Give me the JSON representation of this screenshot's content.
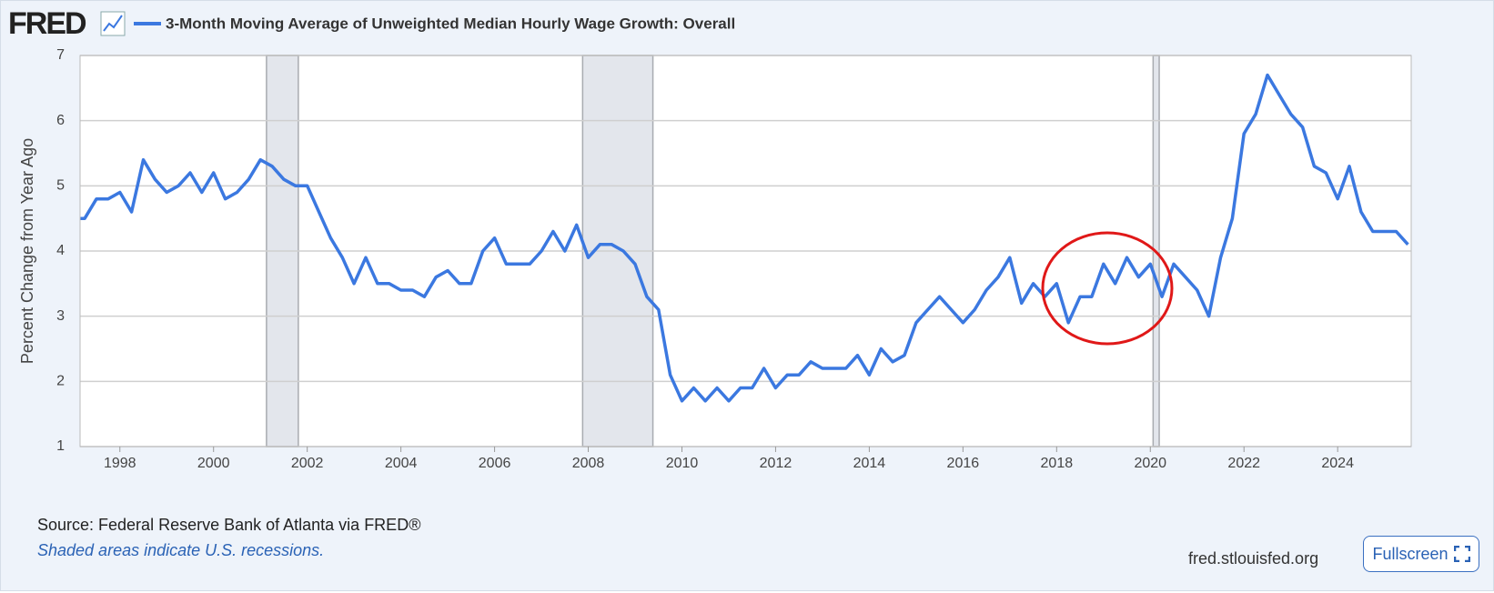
{
  "header": {
    "logo": "FRED"
  },
  "chart_data": {
    "type": "line",
    "y_label": "Percent Change from Year Ago",
    "series": [
      {
        "name": "3-Month Moving Average of Unweighted Median Hourly Wage Growth: Overall",
        "color": "#3b78e0",
        "values": [
          4.5,
          4.5,
          4.8,
          4.8,
          4.9,
          4.6,
          5.4,
          5.1,
          4.9,
          5.0,
          5.2,
          4.9,
          5.2,
          4.8,
          4.9,
          5.1,
          5.4,
          5.3,
          5.1,
          5.0,
          5.0,
          4.6,
          4.2,
          3.9,
          3.5,
          3.9,
          3.5,
          3.5,
          3.4,
          3.4,
          3.3,
          3.6,
          3.7,
          3.5,
          3.5,
          4.0,
          4.2,
          3.8,
          3.8,
          3.8,
          4.0,
          4.3,
          4.0,
          4.4,
          3.9,
          4.1,
          4.1,
          4.0,
          3.8,
          3.3,
          3.1,
          2.1,
          1.7,
          1.9,
          1.7,
          1.9,
          1.7,
          1.9,
          1.9,
          2.2,
          1.9,
          2.1,
          2.1,
          2.3,
          2.2,
          2.2,
          2.2,
          2.4,
          2.1,
          2.5,
          2.3,
          2.4,
          2.9,
          3.1,
          3.3,
          3.1,
          2.9,
          3.1,
          3.4,
          3.6,
          3.9,
          3.2,
          3.5,
          3.3,
          3.5,
          2.9,
          3.3,
          3.3,
          3.8,
          3.5,
          3.9,
          3.6,
          3.8,
          3.3,
          3.8,
          3.6,
          3.4,
          3.0,
          3.9,
          4.5,
          5.8,
          6.1,
          6.7,
          6.4,
          6.1,
          5.9,
          5.3,
          5.2,
          4.8,
          5.3,
          4.6,
          4.3,
          4.3,
          4.3,
          4.1
        ]
      }
    ],
    "x": [
      1997.15,
      1997.25,
      1997.5,
      1997.75,
      1998.0,
      1998.25,
      1998.5,
      1998.75,
      1999.0,
      1999.25,
      1999.5,
      1999.75,
      2000.0,
      2000.25,
      2000.5,
      2000.75,
      2001.0,
      2001.25,
      2001.5,
      2001.75,
      2002.0,
      2002.25,
      2002.5,
      2002.75,
      2003.0,
      2003.25,
      2003.5,
      2003.75,
      2004.0,
      2004.25,
      2004.5,
      2004.75,
      2005.0,
      2005.25,
      2005.5,
      2005.75,
      2006.0,
      2006.25,
      2006.5,
      2006.75,
      2007.0,
      2007.25,
      2007.5,
      2007.75,
      2008.0,
      2008.25,
      2008.5,
      2008.75,
      2009.0,
      2009.25,
      2009.5,
      2009.75,
      2010.0,
      2010.25,
      2010.5,
      2010.75,
      2011.0,
      2011.25,
      2011.5,
      2011.75,
      2012.0,
      2012.25,
      2012.5,
      2012.75,
      2013.0,
      2013.25,
      2013.5,
      2013.75,
      2014.0,
      2014.25,
      2014.5,
      2014.75,
      2015.0,
      2015.25,
      2015.5,
      2015.75,
      2016.0,
      2016.25,
      2016.5,
      2016.75,
      2017.0,
      2017.25,
      2017.5,
      2017.75,
      2018.0,
      2018.25,
      2018.5,
      2018.75,
      2019.0,
      2019.25,
      2019.5,
      2019.75,
      2020.0,
      2020.25,
      2020.5,
      2020.75,
      2021.0,
      2021.25,
      2021.5,
      2021.75,
      2022.0,
      2022.25,
      2022.5,
      2022.75,
      2023.0,
      2023.25,
      2023.5,
      2023.75,
      2024.0,
      2024.25,
      2024.5,
      2024.75,
      2025.0,
      2025.25,
      2025.5
    ],
    "recessions": [
      [
        2001.13,
        2001.81
      ],
      [
        2007.88,
        2009.38
      ],
      [
        2020.06,
        2020.19
      ]
    ],
    "xlim": [
      1997.15,
      2025.57
    ],
    "ylim": [
      1,
      7
    ],
    "xticks": [
      1998,
      2000,
      2002,
      2004,
      2006,
      2008,
      2010,
      2012,
      2014,
      2016,
      2018,
      2020,
      2022,
      2024
    ],
    "yticks": [
      1,
      2,
      3,
      4,
      5,
      6,
      7
    ],
    "grid": true
  },
  "footer": {
    "source": "Source: Federal Reserve Bank of Atlanta via FRED®",
    "note": "Shaded areas indicate U.S. recessions.",
    "site": "fred.stlouisfed.org",
    "button": "Fullscreen"
  }
}
